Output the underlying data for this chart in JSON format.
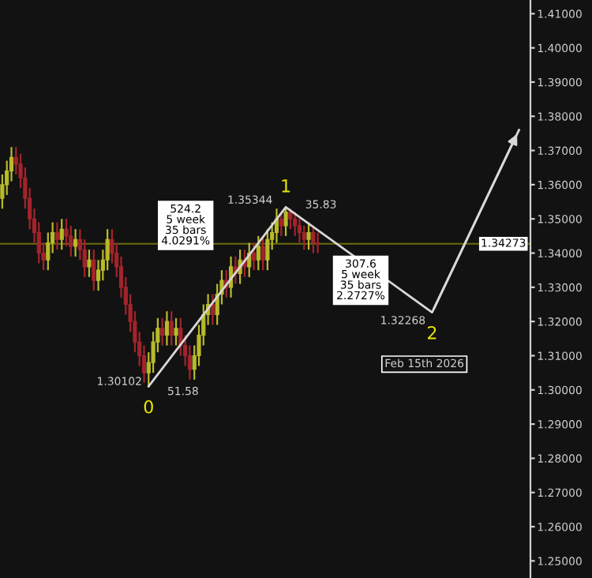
{
  "chart_data": {
    "type": "candlestick",
    "categories": [
      null,
      null,
      null,
      null,
      null,
      null,
      null,
      null,
      null,
      null,
      null,
      null,
      null,
      null,
      null,
      null,
      null,
      null,
      null,
      null,
      null,
      null,
      null,
      null,
      null,
      null,
      null,
      null,
      null,
      null,
      null,
      null,
      null,
      null,
      null,
      null,
      null,
      null,
      null,
      null,
      null,
      null,
      null,
      null,
      null,
      null,
      null,
      null,
      null,
      null,
      null,
      null,
      null,
      null,
      null,
      null,
      null,
      null,
      null,
      null,
      null,
      null,
      null,
      null,
      null,
      null,
      null,
      null,
      null,
      null,
      null,
      null,
      null,
      null,
      null,
      null,
      null,
      null,
      null,
      null,
      null,
      null,
      null,
      null,
      null,
      null,
      null,
      null,
      null,
      null,
      null,
      null,
      null,
      null,
      null,
      null,
      null,
      null,
      null,
      null,
      null,
      null,
      null,
      null,
      null,
      null,
      null,
      null,
      null,
      null,
      null,
      null,
      null,
      null,
      null,
      null
    ],
    "ohlc": [
      [
        1.356,
        1.363,
        1.353,
        1.36
      ],
      [
        1.36,
        1.367,
        1.357,
        1.364
      ],
      [
        1.364,
        1.371,
        1.361,
        1.368
      ],
      [
        1.368,
        1.371,
        1.363,
        1.366
      ],
      [
        1.366,
        1.369,
        1.359,
        1.362
      ],
      [
        1.362,
        1.365,
        1.353,
        1.356
      ],
      [
        1.356,
        1.359,
        1.347,
        1.35
      ],
      [
        1.35,
        1.353,
        1.343,
        1.346
      ],
      [
        1.346,
        1.349,
        1.337,
        1.34
      ],
      [
        1.34,
        1.343,
        1.335,
        1.338
      ],
      [
        1.338,
        1.346,
        1.335,
        1.343
      ],
      [
        1.343,
        1.349,
        1.34,
        1.346
      ],
      [
        1.346,
        1.349,
        1.341,
        1.344
      ],
      [
        1.344,
        1.35,
        1.341,
        1.347
      ],
      [
        1.347,
        1.35,
        1.342,
        1.345
      ],
      [
        1.345,
        1.348,
        1.339,
        1.342
      ],
      [
        1.342,
        1.347,
        1.339,
        1.344
      ],
      [
        1.344,
        1.347,
        1.338,
        1.341
      ],
      [
        1.341,
        1.344,
        1.333,
        1.336
      ],
      [
        1.336,
        1.341,
        1.333,
        1.338
      ],
      [
        1.338,
        1.341,
        1.329,
        1.332
      ],
      [
        1.332,
        1.338,
        1.329,
        1.335
      ],
      [
        1.335,
        1.341,
        1.332,
        1.338
      ],
      [
        1.338,
        1.347,
        1.335,
        1.344
      ],
      [
        1.344,
        1.347,
        1.337,
        1.34
      ],
      [
        1.34,
        1.343,
        1.333,
        1.336
      ],
      [
        1.336,
        1.339,
        1.327,
        1.33
      ],
      [
        1.33,
        1.333,
        1.322,
        1.325
      ],
      [
        1.325,
        1.328,
        1.317,
        1.32
      ],
      [
        1.32,
        1.323,
        1.311,
        1.314
      ],
      [
        1.314,
        1.317,
        1.307,
        1.31
      ],
      [
        1.31,
        1.313,
        1.302,
        1.305
      ],
      [
        1.305,
        1.311,
        1.30102,
        1.308
      ],
      [
        1.308,
        1.317,
        1.305,
        1.314
      ],
      [
        1.314,
        1.321,
        1.311,
        1.318
      ],
      [
        1.318,
        1.321,
        1.313,
        1.316
      ],
      [
        1.316,
        1.323,
        1.313,
        1.32
      ],
      [
        1.32,
        1.323,
        1.313,
        1.316
      ],
      [
        1.316,
        1.321,
        1.313,
        1.318
      ],
      [
        1.318,
        1.321,
        1.31,
        1.313
      ],
      [
        1.313,
        1.316,
        1.307,
        1.31
      ],
      [
        1.31,
        1.313,
        1.303,
        1.306
      ],
      [
        1.306,
        1.313,
        1.303,
        1.31
      ],
      [
        1.31,
        1.319,
        1.307,
        1.316
      ],
      [
        1.316,
        1.325,
        1.313,
        1.322
      ],
      [
        1.322,
        1.328,
        1.319,
        1.325
      ],
      [
        1.325,
        1.328,
        1.319,
        1.322
      ],
      [
        1.322,
        1.331,
        1.319,
        1.328
      ],
      [
        1.328,
        1.335,
        1.325,
        1.332
      ],
      [
        1.332,
        1.335,
        1.327,
        1.33
      ],
      [
        1.33,
        1.339,
        1.327,
        1.336
      ],
      [
        1.336,
        1.339,
        1.331,
        1.334
      ],
      [
        1.334,
        1.341,
        1.331,
        1.338
      ],
      [
        1.338,
        1.341,
        1.333,
        1.336
      ],
      [
        1.336,
        1.343,
        1.333,
        1.34
      ],
      [
        1.34,
        1.343,
        1.335,
        1.338
      ],
      [
        1.338,
        1.345,
        1.335,
        1.342
      ],
      [
        1.342,
        1.345,
        1.335,
        1.338
      ],
      [
        1.338,
        1.347,
        1.335,
        1.344
      ],
      [
        1.344,
        1.349,
        1.341,
        1.346
      ],
      [
        1.346,
        1.353,
        1.343,
        1.35
      ],
      [
        1.35,
        1.352,
        1.345,
        1.348
      ],
      [
        1.348,
        1.35344,
        1.345,
        1.352
      ],
      [
        1.352,
        1.353,
        1.347,
        1.35
      ],
      [
        1.35,
        1.352,
        1.345,
        1.348
      ],
      [
        1.348,
        1.35,
        1.343,
        1.346
      ],
      [
        1.346,
        1.348,
        1.341,
        1.344
      ],
      [
        1.344,
        1.349,
        1.341,
        1.346
      ],
      [
        1.346,
        1.348,
        1.34,
        1.343
      ],
      [
        1.343,
        1.346,
        1.34,
        1.34273
      ],
      null,
      null,
      null,
      null,
      null,
      null,
      null,
      null,
      null,
      null,
      null,
      null,
      null,
      null,
      null,
      null,
      null,
      null,
      null,
      null,
      null,
      null,
      null,
      null,
      null,
      null,
      null,
      null,
      null,
      null,
      null,
      null,
      null,
      null,
      null,
      null,
      null,
      null,
      null,
      null,
      null,
      null,
      null,
      null,
      null,
      null
    ],
    "colors": [
      "#b8bb2a",
      "#b8bb2a",
      "#b8bb2a",
      "#a3242c",
      "#a3242c",
      "#a3242c",
      "#a3242c",
      "#a3242c",
      "#a3242c",
      "#a3242c",
      "#b8bb2a",
      "#b8bb2a",
      "#a3242c",
      "#b8bb2a",
      "#a3242c",
      "#a3242c",
      "#b8bb2a",
      "#a3242c",
      "#a3242c",
      "#b8bb2a",
      "#a3242c",
      "#b8bb2a",
      "#b8bb2a",
      "#b8bb2a",
      "#a3242c",
      "#a3242c",
      "#a3242c",
      "#a3242c",
      "#a3242c",
      "#a3242c",
      "#a3242c",
      "#a3242c",
      "#b8bb2a",
      "#b8bb2a",
      "#b8bb2a",
      "#a3242c",
      "#b8bb2a",
      "#a3242c",
      "#b8bb2a",
      "#a3242c",
      "#a3242c",
      "#a3242c",
      "#b8bb2a",
      "#b8bb2a",
      "#b8bb2a",
      "#b8bb2a",
      "#a3242c",
      "#b8bb2a",
      "#b8bb2a",
      "#a3242c",
      "#b8bb2a",
      "#a3242c",
      "#b8bb2a",
      "#a3242c",
      "#b8bb2a",
      "#a3242c",
      "#b8bb2a",
      "#a3242c",
      "#b8bb2a",
      "#b8bb2a",
      "#b8bb2a",
      "#a3242c",
      "#b8bb2a",
      "#a3242c",
      "#a3242c",
      "#a3242c",
      "#a3242c",
      "#b8bb2a",
      "#a3242c",
      "#a3242c",
      null,
      null,
      null,
      null,
      null,
      null,
      null,
      null,
      null,
      null,
      null,
      null,
      null,
      null,
      null,
      null,
      null,
      null,
      null,
      null,
      null,
      null,
      null,
      null,
      null,
      null,
      null,
      null,
      null,
      null,
      null,
      null,
      null,
      null,
      null,
      null,
      null,
      null,
      null,
      null,
      null,
      null,
      null,
      null,
      null,
      null
    ],
    "series": [
      {
        "type": "line",
        "color": "#d8d8d8",
        "values": [
          null,
          null,
          null,
          null,
          null,
          null,
          null,
          null,
          null,
          null,
          null,
          null,
          null,
          null,
          null,
          null,
          null,
          null,
          null,
          null,
          null,
          null,
          null,
          null,
          null,
          null,
          null,
          null,
          null,
          null,
          null,
          null,
          1.30102,
          null,
          null,
          null,
          null,
          null,
          null,
          null,
          null,
          null,
          null,
          null,
          null,
          null,
          null,
          null,
          null,
          null,
          null,
          null,
          null,
          null,
          null,
          null,
          null,
          null,
          null,
          null,
          null,
          null,
          1.35344,
          null,
          null,
          null,
          null,
          null,
          null,
          null,
          null,
          null,
          null,
          null,
          null,
          null,
          null,
          null,
          null,
          null,
          null,
          null,
          null,
          null,
          null,
          null,
          null,
          null,
          null,
          null,
          null,
          null,
          null,
          null,
          1.32268,
          null,
          null,
          null,
          null,
          null,
          null,
          null,
          null,
          null,
          null,
          null,
          null,
          null,
          null,
          null,
          null,
          null,
          null,
          1.376,
          null,
          null
        ],
        "value_labels": [
          null,
          null,
          null,
          null,
          null,
          null,
          null,
          null,
          null,
          null,
          null,
          null,
          null,
          null,
          null,
          null,
          null,
          null,
          null,
          null,
          null,
          null,
          null,
          null,
          null,
          null,
          null,
          null,
          null,
          null,
          null,
          null,
          "1.30102",
          null,
          null,
          null,
          null,
          null,
          null,
          null,
          null,
          null,
          null,
          null,
          null,
          null,
          null,
          null,
          null,
          null,
          null,
          null,
          null,
          null,
          null,
          null,
          null,
          null,
          null,
          null,
          null,
          null,
          "1.35344",
          null,
          null,
          null,
          null,
          null,
          null,
          null,
          null,
          null,
          null,
          null,
          null,
          null,
          null,
          null,
          null,
          null,
          null,
          null,
          null,
          null,
          null,
          null,
          null,
          null,
          null,
          null,
          null,
          null,
          null,
          null,
          "1.32268",
          null,
          null,
          null,
          null,
          null,
          null,
          null,
          null,
          null,
          null,
          null,
          null,
          null,
          null,
          null,
          null,
          null,
          null,
          null,
          null,
          null
        ]
      }
    ],
    "ref_lines": [
      {
        "axis": "y",
        "value": 1.34273,
        "label": "1.34273",
        "color": "#6b6b10"
      }
    ],
    "annotations": [
      "0",
      "1",
      "2",
      "51.58",
      "35.83",
      "524.2\n5 week\n35 bars\n4.0291%",
      "307.6\n5 week\n35 bars\n2.2727%",
      "Feb 15th 2026"
    ],
    "ylim": [
      1.245,
      1.414
    ],
    "yticks": [
      {
        "value": 1.25,
        "label": "1.25000"
      },
      {
        "value": 1.26,
        "label": "1.26000"
      },
      {
        "value": 1.27,
        "label": "1.27000"
      },
      {
        "value": 1.28,
        "label": "1.28000"
      },
      {
        "value": 1.29,
        "label": "1.29000"
      },
      {
        "value": 1.3,
        "label": "1.30000"
      },
      {
        "value": 1.31,
        "label": "1.31000"
      },
      {
        "value": 1.32,
        "label": "1.32000"
      },
      {
        "value": 1.33,
        "label": "1.33000"
      },
      {
        "value": 1.34,
        "label": "1.34000"
      },
      {
        "value": 1.35,
        "label": "1.35000"
      },
      {
        "value": 1.36,
        "label": "1.36000"
      },
      {
        "value": 1.37,
        "label": "1.37000"
      },
      {
        "value": 1.38,
        "label": "1.38000"
      },
      {
        "value": 1.39,
        "label": "1.39000"
      },
      {
        "value": 1.4,
        "label": "1.40000"
      },
      {
        "value": 1.41,
        "label": "1.41000"
      }
    ],
    "grid": false,
    "legend": false,
    "tick_labels": "y"
  }
}
